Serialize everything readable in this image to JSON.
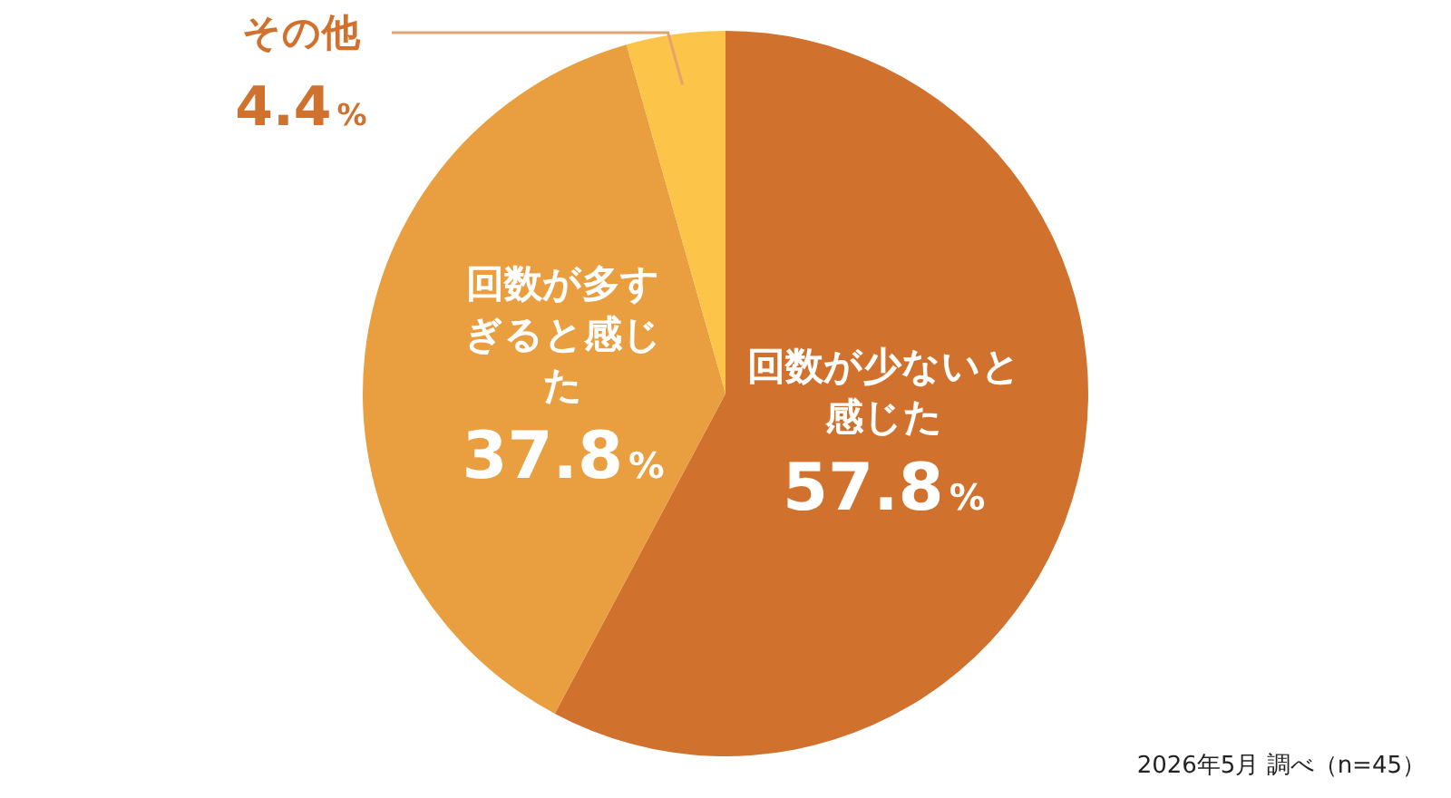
{
  "chart_data": {
    "type": "pie",
    "categories": [
      "回数が少ないと感じた",
      "回数が多すぎると感じた",
      "その他"
    ],
    "values": [
      57.8,
      37.8,
      4.4
    ],
    "colors": [
      "#d0722e",
      "#e99e40",
      "#fcc449"
    ],
    "value_labels": [
      "57.8%",
      "37.8%",
      "4.4%"
    ],
    "legend": false,
    "annotations": [
      "2026年5月 調べ（n=45）"
    ]
  }
}
